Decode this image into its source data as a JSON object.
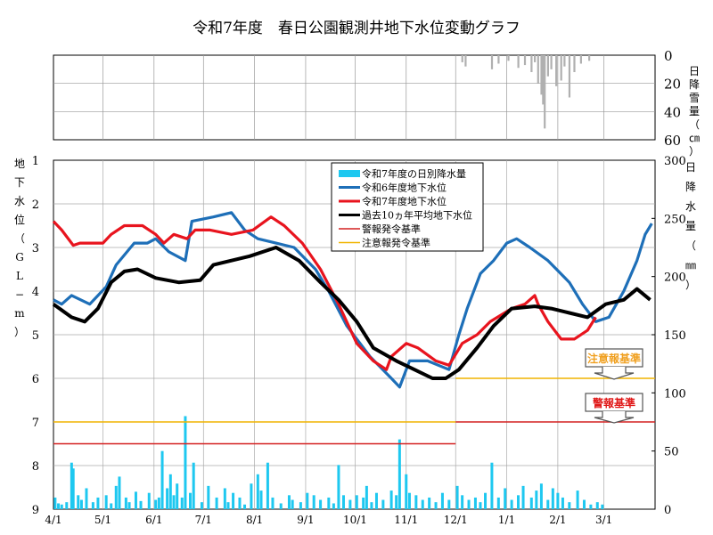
{
  "chart_data": [
    {
      "type": "bar",
      "title": "令和7年度　春日公園観測井地下水位変動グラフ",
      "ylabel": "日降雪量（㎝）",
      "ylim": [
        0,
        60
      ],
      "yticks": [
        0,
        20,
        40,
        60
      ],
      "x_days": [
        248,
        250,
        266,
        270,
        276,
        282,
        286,
        290,
        292,
        294,
        296,
        297,
        298,
        300,
        302,
        305,
        308,
        310,
        313,
        316,
        320,
        325
      ],
      "values": [
        5,
        8,
        10,
        6,
        4,
        9,
        7,
        12,
        5,
        20,
        28,
        35,
        52,
        15,
        10,
        22,
        18,
        8,
        30,
        12,
        6,
        4
      ],
      "color": "#b0b0b0"
    },
    {
      "type": "line",
      "ylabel_left": "地下水位（GL−m）",
      "ylabel_right": "日降水量（㎜）",
      "ylim_left": [
        1,
        9
      ],
      "yticks_left": [
        1,
        2,
        3,
        4,
        5,
        6,
        7,
        8,
        9
      ],
      "ylim_right": [
        0,
        300
      ],
      "yticks_right": [
        0,
        50,
        100,
        150,
        200,
        250,
        300
      ],
      "xlim_days": [
        0,
        365
      ],
      "xticks": [
        {
          "day": 0,
          "label": "4/1"
        },
        {
          "day": 30,
          "label": "5/1"
        },
        {
          "day": 61,
          "label": "6/1"
        },
        {
          "day": 91,
          "label": "7/1"
        },
        {
          "day": 122,
          "label": "8/1"
        },
        {
          "day": 153,
          "label": "9/1"
        },
        {
          "day": 183,
          "label": "10/1"
        },
        {
          "day": 214,
          "label": "11/1"
        },
        {
          "day": 244,
          "label": "12/1"
        },
        {
          "day": 275,
          "label": "1/1"
        },
        {
          "day": 306,
          "label": "2/1"
        },
        {
          "day": 334,
          "label": "3/1"
        }
      ],
      "legend": {
        "placement": "top-center",
        "entries": [
          {
            "label": "令和7年度の日別降水量",
            "color": "#1ec8f0",
            "kind": "box"
          },
          {
            "label": "令和6年度地下水位",
            "color": "#1e6fb8",
            "kind": "thick"
          },
          {
            "label": "令和7年度地下水位",
            "color": "#e8141e",
            "kind": "thick"
          },
          {
            "label": "過去10ヵ年平均地下水位",
            "color": "#000000",
            "kind": "thick"
          },
          {
            "label": "警報発令基準",
            "color": "#d42020",
            "kind": "thin"
          },
          {
            "label": "注意報発令基準",
            "color": "#f0b400",
            "kind": "thin"
          }
        ]
      },
      "annotations": [
        {
          "text": "注意報基準",
          "color": "#f0a020"
        },
        {
          "text": "警報基準",
          "color": "#e01818"
        }
      ],
      "series": [
        {
          "name": "令和6年度地下水位",
          "color": "#1e6fb8",
          "days": [
            0,
            5,
            11,
            22,
            32,
            38,
            49,
            57,
            62,
            70,
            80,
            84,
            97,
            108,
            116,
            124,
            135,
            146,
            159,
            167,
            178,
            192,
            205,
            210,
            216,
            227,
            240,
            246,
            251,
            259,
            267,
            275,
            281,
            289,
            300,
            313,
            321,
            329,
            337,
            346,
            354,
            359,
            363
          ],
          "values": [
            4.2,
            4.3,
            4.1,
            4.3,
            3.9,
            3.4,
            2.9,
            2.9,
            2.8,
            3.1,
            3.3,
            2.4,
            2.3,
            2.2,
            2.6,
            2.8,
            2.9,
            3.0,
            3.5,
            4.0,
            4.8,
            5.5,
            6.0,
            6.2,
            5.6,
            5.6,
            5.8,
            5.0,
            4.4,
            3.6,
            3.3,
            2.9,
            2.8,
            3.0,
            3.3,
            3.8,
            4.3,
            4.7,
            4.6,
            4.0,
            3.3,
            2.7,
            2.45
          ]
        },
        {
          "name": "令和7年度地下水位",
          "color": "#e8141e",
          "days": [
            0,
            5,
            12,
            16,
            30,
            35,
            43,
            54,
            62,
            67,
            73,
            81,
            86,
            95,
            108,
            121,
            132,
            140,
            151,
            162,
            173,
            184,
            194,
            202,
            205,
            214,
            221,
            232,
            240,
            248,
            257,
            265,
            278,
            286,
            292,
            294,
            300,
            308,
            316,
            324,
            329
          ],
          "values": [
            2.4,
            2.6,
            2.95,
            2.9,
            2.9,
            2.7,
            2.5,
            2.5,
            2.7,
            2.9,
            2.7,
            2.8,
            2.6,
            2.6,
            2.7,
            2.6,
            2.3,
            2.5,
            2.9,
            3.5,
            4.3,
            5.2,
            5.6,
            5.8,
            5.5,
            5.2,
            5.3,
            5.6,
            5.7,
            5.2,
            5.0,
            4.7,
            4.4,
            4.3,
            4.1,
            4.3,
            4.7,
            5.1,
            5.1,
            4.9,
            4.6
          ]
        },
        {
          "name": "過去10ヵ年平均地下水位",
          "color": "#000000",
          "days": [
            0,
            11,
            19,
            27,
            35,
            43,
            51,
            62,
            76,
            89,
            97,
            108,
            119,
            135,
            149,
            162,
            173,
            184,
            194,
            208,
            219,
            230,
            238,
            246,
            257,
            267,
            278,
            292,
            302,
            313,
            324,
            335,
            346,
            354,
            362
          ],
          "values": [
            4.3,
            4.6,
            4.7,
            4.4,
            3.8,
            3.55,
            3.5,
            3.7,
            3.8,
            3.75,
            3.4,
            3.3,
            3.2,
            3.0,
            3.3,
            3.8,
            4.2,
            4.7,
            5.3,
            5.6,
            5.8,
            6.0,
            6.0,
            5.8,
            5.3,
            4.8,
            4.4,
            4.35,
            4.4,
            4.5,
            4.6,
            4.3,
            4.2,
            3.95,
            4.2
          ]
        },
        {
          "name": "警報発令基準",
          "color": "#d42020",
          "days": [
            0,
            244,
            244,
            365
          ],
          "values": [
            7.5,
            7.5,
            7.0,
            7.0
          ],
          "break_at": 1
        },
        {
          "name": "注意報発令基準",
          "color": "#f0b400",
          "days": [
            0,
            244,
            244,
            365
          ],
          "values": [
            7.0,
            7.0,
            6.0,
            6.0
          ],
          "break_at": 1
        }
      ],
      "precip": {
        "name": "令和7年度の日別降水量",
        "color": "#1ec8f0",
        "days": [
          1,
          3,
          5,
          8,
          11,
          12,
          15,
          17,
          20,
          24,
          27,
          32,
          35,
          38,
          40,
          44,
          46,
          50,
          53,
          58,
          62,
          64,
          66,
          69,
          71,
          73,
          75,
          78,
          80,
          83,
          85,
          90,
          94,
          99,
          104,
          106,
          109,
          113,
          116,
          120,
          124,
          126,
          130,
          133,
          138,
          143,
          145,
          150,
          154,
          158,
          162,
          167,
          170,
          173,
          176,
          180,
          184,
          188,
          190,
          193,
          196,
          200,
          205,
          208,
          210,
          214,
          216,
          220,
          224,
          228,
          232,
          236,
          240,
          245,
          248,
          252,
          256,
          259,
          262,
          266,
          270,
          274,
          278,
          282,
          285,
          290,
          293,
          296,
          300,
          303,
          306,
          309,
          313,
          318,
          322,
          326,
          330,
          333
        ],
        "values": [
          10,
          5,
          4,
          6,
          40,
          35,
          12,
          8,
          18,
          6,
          10,
          12,
          5,
          20,
          28,
          10,
          6,
          15,
          7,
          14,
          8,
          10,
          50,
          18,
          30,
          12,
          22,
          10,
          80,
          14,
          40,
          6,
          20,
          10,
          18,
          6,
          14,
          10,
          4,
          22,
          30,
          16,
          40,
          10,
          5,
          12,
          8,
          6,
          14,
          12,
          8,
          10,
          5,
          38,
          12,
          8,
          12,
          10,
          20,
          6,
          14,
          8,
          16,
          12,
          60,
          30,
          14,
          12,
          8,
          10,
          6,
          14,
          8,
          20,
          12,
          8,
          10,
          6,
          14,
          40,
          10,
          18,
          8,
          12,
          20,
          10,
          16,
          22,
          8,
          18,
          14,
          10,
          6,
          16,
          8,
          4,
          6,
          4
        ]
      }
    }
  ]
}
